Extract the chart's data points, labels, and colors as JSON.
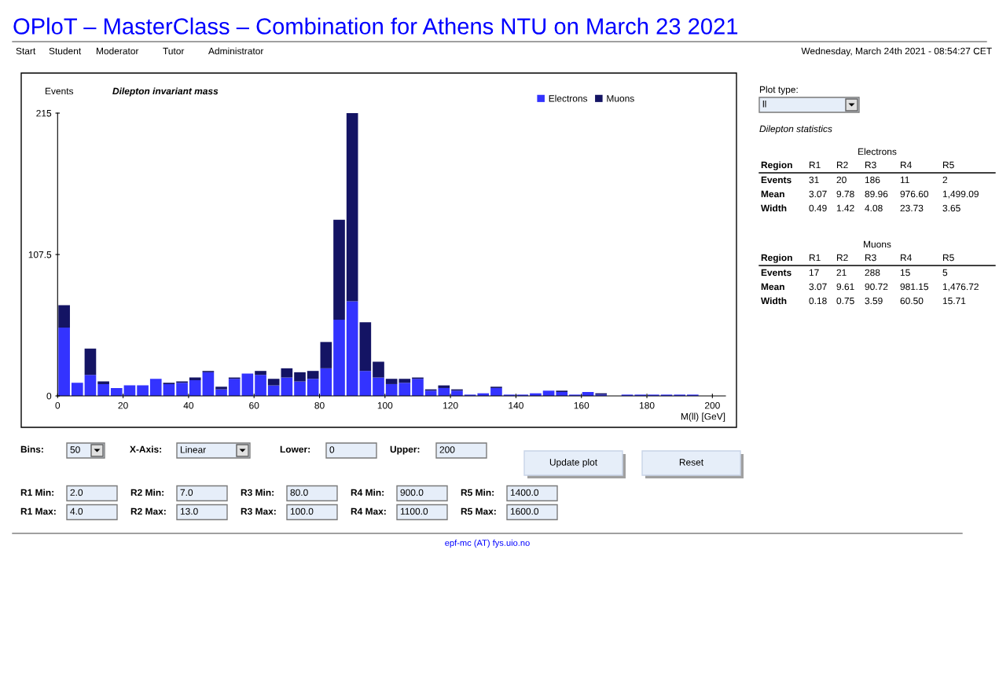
{
  "chart_data": [
    {
      "type": "other",
      "title": "OPloT – MasterClass – Combination for Athens NTU on March 23 2021",
      "annotations": [
        "Start",
        "Student",
        "Moderator",
        "Tutor",
        "Administrator",
        "Wednesday, March 24th 2021 - 08:54:27 CET",
        "epf-mc (AT) fys.uio.no"
      ]
    },
    {
      "type": "bar",
      "title": "Dilepton invariant mass",
      "ylabel": "Events",
      "xlabel": "M(ll) [GeV]",
      "stacked": true,
      "legend": "top right",
      "x": [
        2,
        6,
        10,
        14,
        18,
        22,
        26,
        30,
        34,
        38,
        42,
        46,
        50,
        54,
        58,
        62,
        66,
        70,
        74,
        78,
        82,
        86,
        90,
        94,
        98,
        102,
        106,
        110,
        114,
        118,
        122,
        126,
        130,
        134,
        138,
        142,
        146,
        150,
        154,
        158,
        162,
        166,
        170,
        174,
        178,
        182,
        186,
        190,
        194,
        198
      ],
      "series": [
        {
          "name": "Electrons",
          "color": "#3333ff",
          "values": [
            52,
            10,
            16,
            9,
            6,
            8,
            8,
            13,
            9,
            10,
            12,
            18,
            5,
            13,
            17,
            16,
            8,
            14,
            11,
            13,
            21,
            58,
            72,
            19,
            14,
            9,
            10,
            13,
            4,
            6,
            4,
            1,
            2,
            6,
            1,
            1,
            2,
            4,
            3,
            1,
            3,
            1,
            0,
            1,
            1,
            1,
            1,
            1,
            1,
            0
          ]
        },
        {
          "name": "Muons",
          "color": "#141464",
          "values": [
            17,
            0,
            20,
            2,
            0,
            0,
            0,
            0,
            1,
            1,
            2,
            1,
            2,
            1,
            0,
            3,
            5,
            7,
            7,
            6,
            20,
            76,
            143,
            37,
            12,
            4,
            3,
            1,
            1,
            2,
            1,
            0,
            0,
            1,
            0,
            0,
            0,
            0,
            1,
            0,
            0,
            1,
            0,
            0,
            0,
            0,
            0,
            0,
            0,
            0
          ]
        }
      ],
      "xlim": [
        0,
        204
      ],
      "xticks": [
        0,
        20,
        40,
        60,
        80,
        100,
        120,
        140,
        160,
        180,
        200
      ],
      "ylim": [
        0,
        215
      ],
      "yticks": [
        0,
        107.5,
        215
      ]
    },
    {
      "type": "other",
      "title": "Plot type:",
      "annotations": [
        "ll",
        "Dilepton statistics"
      ]
    },
    {
      "type": "other",
      "title": "Electrons",
      "ylabel": "Region",
      "categories": [
        "R1",
        "R2",
        "R3",
        "R4",
        "R5"
      ],
      "y_categories": [
        "Events",
        "Mean",
        "Width"
      ],
      "cell_labels": [
        [
          "31",
          "20",
          "186",
          "11",
          "2"
        ],
        [
          "3.07",
          "9.78",
          "89.96",
          "976.60",
          "1,499.09"
        ],
        [
          "0.49",
          "1.42",
          "4.08",
          "23.73",
          "3.65"
        ]
      ]
    },
    {
      "type": "other",
      "title": "Muons",
      "ylabel": "Region",
      "categories": [
        "R1",
        "R2",
        "R3",
        "R4",
        "R5"
      ],
      "y_categories": [
        "Events",
        "Mean",
        "Width"
      ],
      "cell_labels": [
        [
          "17",
          "21",
          "288",
          "15",
          "5"
        ],
        [
          "3.07",
          "9.61",
          "90.72",
          "981.15",
          "1,476.72"
        ],
        [
          "0.18",
          "0.75",
          "3.59",
          "60.50",
          "15.71"
        ]
      ]
    },
    {
      "type": "other",
      "annotations": [
        "Bins:",
        "50",
        "X-Axis:",
        "Linear",
        "Lower:",
        "0",
        "Upper:",
        "200",
        "Update plot",
        "Reset",
        "R1 Min:",
        "2.0",
        "R2 Min:",
        "7.0",
        "R3 Min:",
        "80.0",
        "R4 Min:",
        "900.0",
        "R5 Min:",
        "1400.0",
        "R1 Max:",
        "4.0",
        "R2 Max:",
        "13.0",
        "R3 Max:",
        "100.0",
        "R4 Max:",
        "1100.0",
        "R5 Max:",
        "1600.0"
      ]
    }
  ]
}
